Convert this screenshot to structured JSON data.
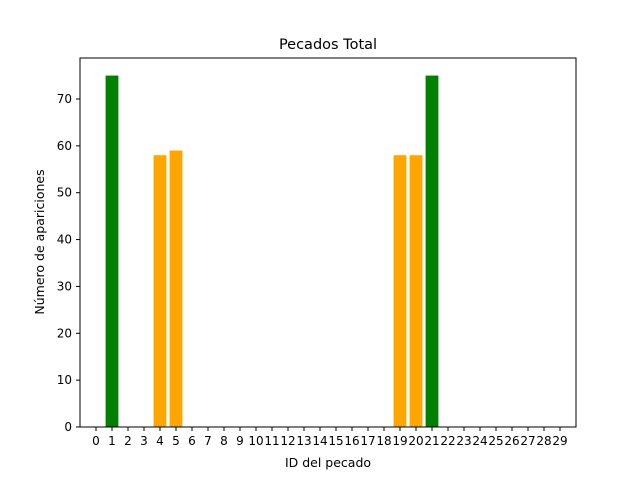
{
  "chart_data": {
    "type": "bar",
    "title": "Pecados Total",
    "xlabel": "ID del pecado",
    "ylabel": "Número de apariciones",
    "categories": [
      "0",
      "1",
      "2",
      "3",
      "4",
      "5",
      "6",
      "7",
      "8",
      "9",
      "10",
      "11",
      "12",
      "13",
      "14",
      "15",
      "16",
      "17",
      "18",
      "19",
      "20",
      "21",
      "22",
      "23",
      "24",
      "25",
      "26",
      "27",
      "28",
      "29"
    ],
    "values": [
      0,
      75,
      0,
      0,
      58,
      59,
      0,
      0,
      0,
      0,
      0,
      0,
      0,
      0,
      0,
      0,
      0,
      0,
      0,
      58,
      58,
      75,
      0,
      0,
      0,
      0,
      0,
      0,
      0,
      0
    ],
    "bar_colors": [
      "#ffa500",
      "#008000",
      "#ffa500",
      "#ffa500",
      "#ffa500",
      "#ffa500",
      "#ffa500",
      "#ffa500",
      "#ffa500",
      "#ffa500",
      "#ffa500",
      "#ffa500",
      "#ffa500",
      "#ffa500",
      "#ffa500",
      "#ffa500",
      "#ffa500",
      "#ffa500",
      "#ffa500",
      "#ffa500",
      "#ffa500",
      "#008000",
      "#ffa500",
      "#ffa500",
      "#ffa500",
      "#ffa500",
      "#ffa500",
      "#ffa500",
      "#ffa500",
      "#ffa500"
    ],
    "yticks": [
      0,
      10,
      20,
      30,
      40,
      50,
      60,
      70
    ],
    "ylim": [
      0,
      78.75
    ],
    "grid": false,
    "legend": "none"
  }
}
